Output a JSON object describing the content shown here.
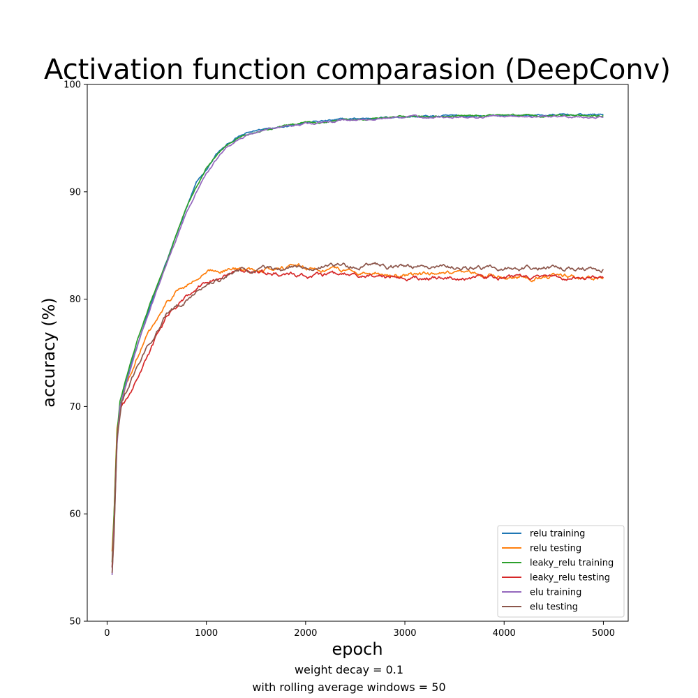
{
  "chart_data": {
    "type": "line",
    "title": "Activation function comparasion (DeepConv)",
    "xlabel": "epoch",
    "ylabel": "accuracy (%)",
    "notes": [
      "weight decay = 0.1",
      "with rolling average windows = 50"
    ],
    "xlim": [
      -200,
      5250
    ],
    "ylim": [
      50,
      100
    ],
    "xticks": [
      0,
      1000,
      2000,
      3000,
      4000,
      5000
    ],
    "yticks": [
      50,
      60,
      70,
      80,
      90,
      100
    ],
    "legend_position": "lower-right",
    "grid": false,
    "series": [
      {
        "name": "relu training",
        "color": "#1f77b4",
        "points": [
          [
            50,
            55
          ],
          [
            70,
            59
          ],
          [
            100,
            67
          ],
          [
            130,
            70
          ],
          [
            200,
            72.5
          ],
          [
            300,
            75.5
          ],
          [
            400,
            78.5
          ],
          [
            500,
            81
          ],
          [
            600,
            83.5
          ],
          [
            700,
            86
          ],
          [
            800,
            88.5
          ],
          [
            900,
            90.8
          ],
          [
            1000,
            92
          ],
          [
            1100,
            93.5
          ],
          [
            1200,
            94.3
          ],
          [
            1300,
            95
          ],
          [
            1400,
            95.4
          ],
          [
            1500,
            95.7
          ],
          [
            1600,
            95.9
          ],
          [
            1800,
            96.2
          ],
          [
            2000,
            96.5
          ],
          [
            2200,
            96.6
          ],
          [
            2500,
            96.8
          ],
          [
            3000,
            97
          ],
          [
            3500,
            97.05
          ],
          [
            4000,
            97.1
          ],
          [
            4500,
            97.15
          ],
          [
            5000,
            97.2
          ]
        ]
      },
      {
        "name": "relu testing",
        "color": "#ff7f0e",
        "points": [
          [
            50,
            56.5
          ],
          [
            70,
            60
          ],
          [
            100,
            68
          ],
          [
            150,
            70.5
          ],
          [
            200,
            72
          ],
          [
            300,
            74.5
          ],
          [
            400,
            76.5
          ],
          [
            500,
            78
          ],
          [
            600,
            79.5
          ],
          [
            700,
            80.7
          ],
          [
            800,
            81.2
          ],
          [
            900,
            81.8
          ],
          [
            1000,
            82.3
          ],
          [
            1100,
            82.7
          ],
          [
            1200,
            82.8
          ],
          [
            1300,
            82.8
          ],
          [
            1400,
            82.7
          ],
          [
            1500,
            82.8
          ],
          [
            1600,
            83
          ],
          [
            1800,
            83
          ],
          [
            2000,
            82.9
          ],
          [
            2200,
            82.8
          ],
          [
            2500,
            82.6
          ],
          [
            2800,
            82.4
          ],
          [
            3000,
            82.3
          ],
          [
            3500,
            82.2
          ],
          [
            4000,
            82.2
          ],
          [
            4500,
            82.1
          ],
          [
            5000,
            82
          ]
        ]
      },
      {
        "name": "leaky_relu training",
        "color": "#2ca02c",
        "points": [
          [
            50,
            55.5
          ],
          [
            70,
            60
          ],
          [
            100,
            67.5
          ],
          [
            130,
            70.5
          ],
          [
            200,
            72.8
          ],
          [
            300,
            76
          ],
          [
            400,
            78.8
          ],
          [
            500,
            81.2
          ],
          [
            600,
            83.5
          ],
          [
            700,
            86
          ],
          [
            800,
            88.5
          ],
          [
            900,
            90.5
          ],
          [
            1000,
            92.2
          ],
          [
            1100,
            93.4
          ],
          [
            1200,
            94.3
          ],
          [
            1300,
            94.9
          ],
          [
            1400,
            95.3
          ],
          [
            1500,
            95.6
          ],
          [
            1600,
            95.8
          ],
          [
            1800,
            96.1
          ],
          [
            2000,
            96.4
          ],
          [
            2200,
            96.6
          ],
          [
            2500,
            96.8
          ],
          [
            3000,
            97
          ],
          [
            3500,
            97.05
          ],
          [
            4000,
            97.1
          ],
          [
            4500,
            97.1
          ],
          [
            5000,
            97.1
          ]
        ]
      },
      {
        "name": "leaky_relu testing",
        "color": "#d62728",
        "points": [
          [
            50,
            55
          ],
          [
            70,
            59
          ],
          [
            100,
            67
          ],
          [
            130,
            69.8
          ],
          [
            200,
            70.5
          ],
          [
            300,
            72.5
          ],
          [
            400,
            74.5
          ],
          [
            500,
            76.5
          ],
          [
            600,
            78.3
          ],
          [
            700,
            79.2
          ],
          [
            800,
            80.3
          ],
          [
            900,
            81.2
          ],
          [
            1000,
            81.8
          ],
          [
            1100,
            82.1
          ],
          [
            1200,
            82.3
          ],
          [
            1300,
            82.5
          ],
          [
            1400,
            82.6
          ],
          [
            1500,
            82.6
          ],
          [
            1600,
            82.5
          ],
          [
            1800,
            82.3
          ],
          [
            2000,
            82.2
          ],
          [
            2200,
            82.2
          ],
          [
            2500,
            82.2
          ],
          [
            2800,
            82.1
          ],
          [
            3000,
            82
          ],
          [
            3500,
            82
          ],
          [
            4000,
            82
          ],
          [
            4500,
            82
          ],
          [
            5000,
            82.1
          ]
        ]
      },
      {
        "name": "elu training",
        "color": "#9467bd",
        "points": [
          [
            50,
            54.3
          ],
          [
            70,
            58.5
          ],
          [
            100,
            66.5
          ],
          [
            130,
            70
          ],
          [
            200,
            72.3
          ],
          [
            300,
            75.5
          ],
          [
            400,
            78.3
          ],
          [
            500,
            80.8
          ],
          [
            600,
            83.2
          ],
          [
            700,
            85.7
          ],
          [
            800,
            88
          ],
          [
            900,
            90
          ],
          [
            1000,
            91.6
          ],
          [
            1100,
            93
          ],
          [
            1200,
            94.1
          ],
          [
            1300,
            94.8
          ],
          [
            1400,
            95.2
          ],
          [
            1500,
            95.5
          ],
          [
            1600,
            95.8
          ],
          [
            1800,
            96.1
          ],
          [
            2000,
            96.3
          ],
          [
            2200,
            96.5
          ],
          [
            2500,
            96.7
          ],
          [
            3000,
            96.9
          ],
          [
            3500,
            97
          ],
          [
            4000,
            97
          ],
          [
            4500,
            97
          ],
          [
            5000,
            97
          ]
        ]
      },
      {
        "name": "elu testing",
        "color": "#8c564b",
        "points": [
          [
            50,
            54.5
          ],
          [
            70,
            58
          ],
          [
            100,
            67
          ],
          [
            150,
            70.5
          ],
          [
            200,
            71.5
          ],
          [
            300,
            73.5
          ],
          [
            400,
            75.5
          ],
          [
            500,
            77
          ],
          [
            600,
            78.5
          ],
          [
            700,
            79.2
          ],
          [
            800,
            80
          ],
          [
            900,
            80.8
          ],
          [
            1000,
            81.4
          ],
          [
            1100,
            81.9
          ],
          [
            1200,
            82.2
          ],
          [
            1300,
            82.7
          ],
          [
            1400,
            82.8
          ],
          [
            1500,
            82.8
          ],
          [
            1600,
            82.8
          ],
          [
            1800,
            83
          ],
          [
            2000,
            83
          ],
          [
            2200,
            83.1
          ],
          [
            2500,
            83.1
          ],
          [
            2800,
            83
          ],
          [
            3000,
            83
          ],
          [
            3500,
            82.9
          ],
          [
            4000,
            82.9
          ],
          [
            4500,
            82.9
          ],
          [
            5000,
            82.8
          ]
        ]
      }
    ]
  }
}
